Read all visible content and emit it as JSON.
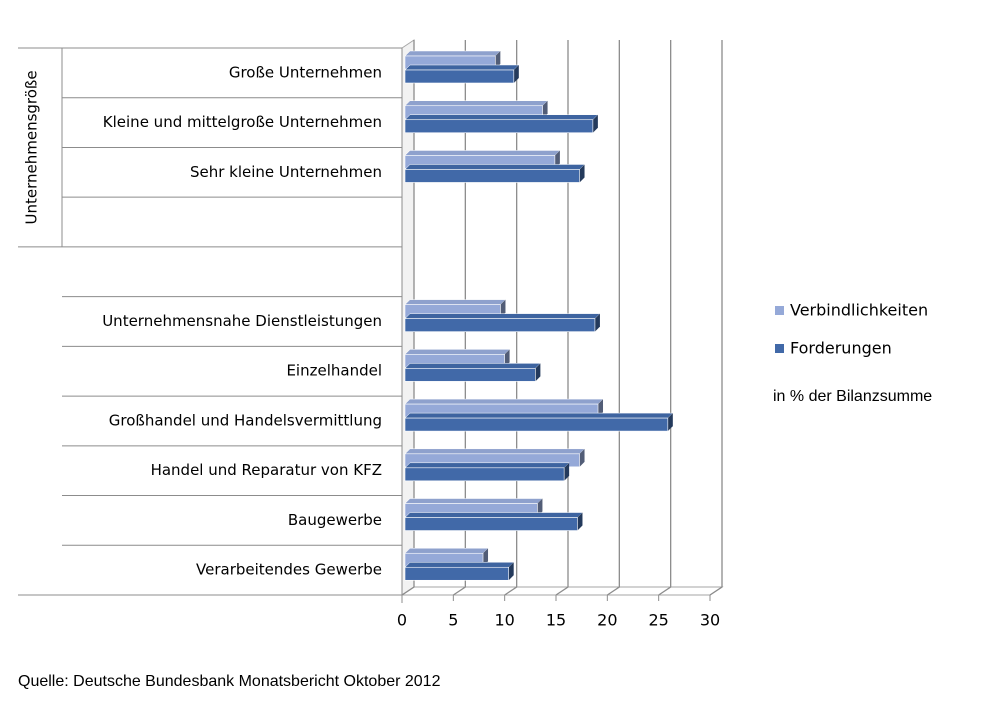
{
  "chart_data": {
    "type": "bar3d_horizontal",
    "group_label": "Unternehmensgröße",
    "categories": [
      "Große Unternehmen",
      "Kleine und mittelgroße Unternehmen",
      "Sehr kleine Unternehmen",
      null,
      null,
      "Unternehmensnahe Dienstleistungen",
      "Einzelhandel",
      "Großhandel und Handelsvermittlung",
      "Handel und Reparatur von KFZ",
      "Baugewerbe",
      "Verarbeitendes Gewerbe"
    ],
    "series": [
      {
        "name": "Verbindlichkeiten",
        "color": "#95a9d8",
        "values": [
          8.8,
          13.4,
          14.6,
          null,
          null,
          9.3,
          9.7,
          18.8,
          17.0,
          12.9,
          7.6
        ]
      },
      {
        "name": "Forderungen",
        "color": "#4169a8",
        "values": [
          10.6,
          18.3,
          17.0,
          null,
          null,
          18.5,
          12.7,
          25.6,
          15.5,
          16.8,
          10.1
        ]
      }
    ],
    "xlim": [
      0,
      30
    ],
    "xticks": [
      0,
      5,
      10,
      15,
      20,
      25,
      30
    ],
    "grid": true,
    "unit_note": "in % der Bilanzsumme",
    "source": "Quelle: Deutsche Bundesbank Monatsbericht Oktober 2012"
  }
}
